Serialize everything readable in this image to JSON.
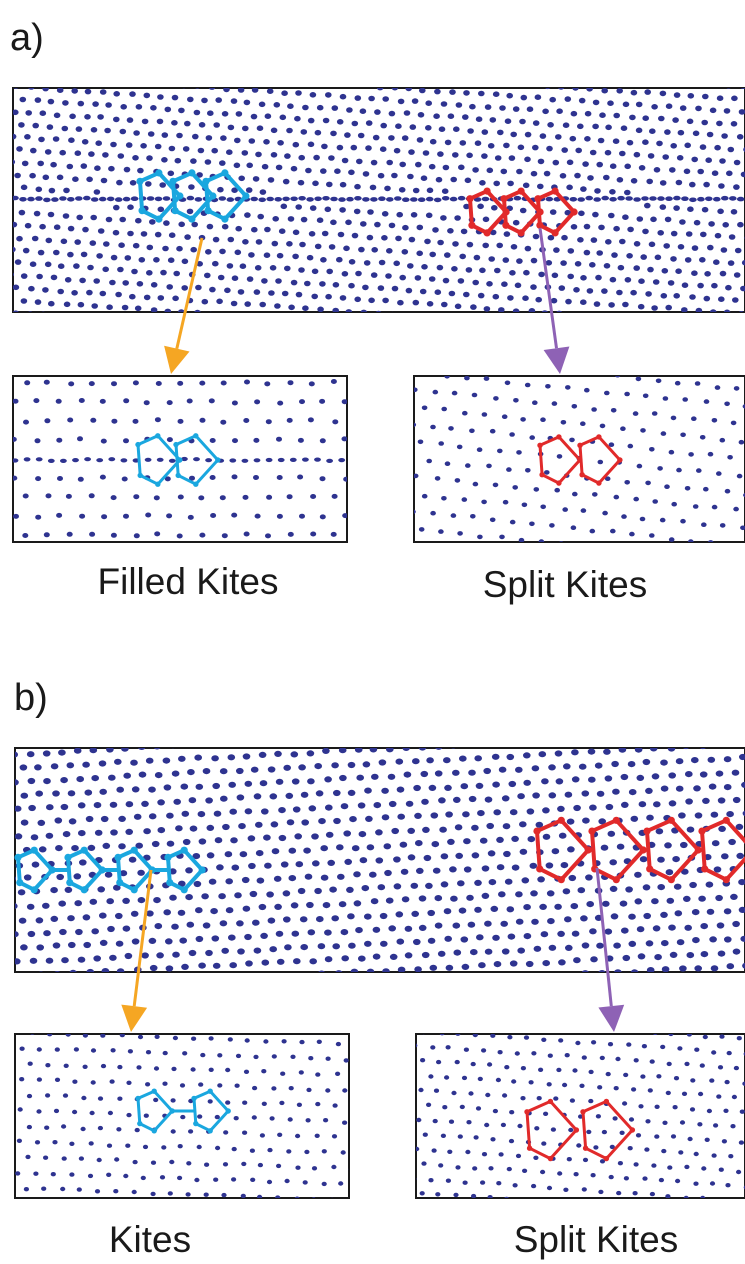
{
  "colors": {
    "atom": "#2e3390",
    "filled_kite": "#1aa7df",
    "split_kite": "#e12a2a",
    "arrow_left": "#f5a623",
    "arrow_right": "#8e62b5",
    "frame": "#1a1a1a"
  },
  "panel_a": {
    "label": "a)",
    "caption_left": "Filled Kites",
    "caption_right": "Split Kites"
  },
  "panel_b": {
    "label": "b)",
    "caption_left": "Kites",
    "caption_right": "Split Kites"
  }
}
